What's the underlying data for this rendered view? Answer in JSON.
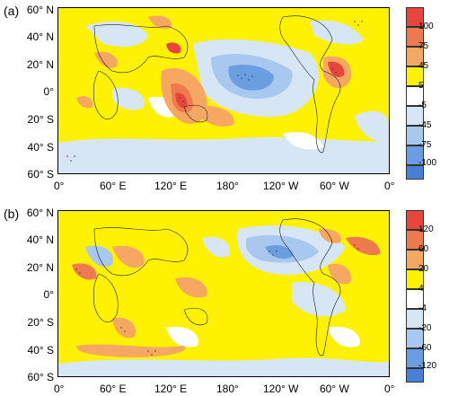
{
  "panels": [
    {
      "label": "(a)",
      "lat_labels": [
        "60° N",
        "40° N",
        "20° N",
        "0°",
        "20° S",
        "40° S",
        "60° S"
      ],
      "lon_labels": [
        "0°",
        "60° E",
        "120° E",
        "180°",
        "120° W",
        "60° W",
        "0°"
      ],
      "colorbar": {
        "levels": [
          "100",
          "75",
          "45",
          "5",
          "-5",
          "-45",
          "-75",
          "-100"
        ],
        "colors": [
          "#e8463c",
          "#f07a50",
          "#f6a862",
          "#fff200",
          "#ffffff",
          "#d7e6f5",
          "#a9c8ef",
          "#6b9ee0",
          "#4a7fd6"
        ]
      }
    },
    {
      "label": "(b)",
      "lat_labels": [
        "60° N",
        "40° N",
        "20° N",
        "0°",
        "20° S",
        "40° S",
        "60° S"
      ],
      "lon_labels": [
        "0°",
        "60° E",
        "120° E",
        "180°",
        "120° W",
        "60° W",
        "0°"
      ],
      "colorbar": {
        "levels": [
          "120",
          "60",
          "20",
          "4",
          "-4",
          "-20",
          "-60",
          "-120"
        ],
        "colors": [
          "#e8463c",
          "#f07a50",
          "#f6a862",
          "#fff200",
          "#ffffff",
          "#d7e6f5",
          "#a9c8ef",
          "#6b9ee0",
          "#4a7fd6"
        ]
      }
    }
  ]
}
